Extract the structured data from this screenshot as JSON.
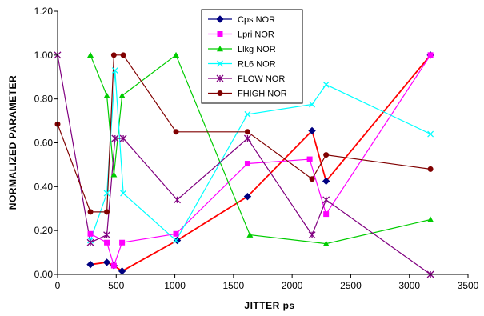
{
  "chart_data": {
    "type": "scatter",
    "xlabel": "JITTER ps",
    "ylabel": "NORMALIZED PARAMETER",
    "xlim": [
      0,
      3500
    ],
    "ylim": [
      0,
      1.2
    ],
    "x_ticks": [
      "0",
      "500",
      "1000",
      "1500",
      "2000",
      "2500",
      "3000",
      "3500"
    ],
    "y_ticks": [
      "0.00",
      "0.20",
      "0.40",
      "0.60",
      "0.80",
      "1.00",
      "1.20"
    ],
    "grid": false,
    "legend_position": "top-center",
    "series": [
      {
        "name": "Cps NOR",
        "color": "#000080",
        "line_color": "#ff0000",
        "marker": "diamond",
        "points": [
          [
            280,
            0.045
          ],
          [
            420,
            0.055
          ],
          [
            480,
            0.04
          ],
          [
            550,
            0.015
          ],
          [
            1020,
            0.155
          ],
          [
            1620,
            0.355
          ],
          [
            2170,
            0.655
          ],
          [
            2290,
            0.425
          ],
          [
            3180,
            1.0
          ]
        ]
      },
      {
        "name": "Lpri NOR",
        "color": "#ff00ff",
        "marker": "square",
        "points": [
          [
            280,
            0.185
          ],
          [
            420,
            0.145
          ],
          [
            480,
            0.04
          ],
          [
            550,
            0.145
          ],
          [
            1010,
            0.185
          ],
          [
            1620,
            0.505
          ],
          [
            2150,
            0.525
          ],
          [
            2290,
            0.275
          ],
          [
            3180,
            1.0
          ]
        ]
      },
      {
        "name": "Llkg NOR",
        "color": "#00cc00",
        "marker": "triangle",
        "points": [
          [
            280,
            1.0
          ],
          [
            420,
            0.815
          ],
          [
            480,
            0.455
          ],
          [
            550,
            0.815
          ],
          [
            1010,
            1.0
          ],
          [
            1640,
            0.18
          ],
          [
            2290,
            0.14
          ],
          [
            3180,
            0.25
          ]
        ]
      },
      {
        "name": "RL6 NOR",
        "color": "#00ffff",
        "marker": "x",
        "points": [
          [
            280,
            0.155
          ],
          [
            420,
            0.37
          ],
          [
            490,
            0.93
          ],
          [
            560,
            0.37
          ],
          [
            1010,
            0.155
          ],
          [
            1620,
            0.73
          ],
          [
            2170,
            0.775
          ],
          [
            2290,
            0.865
          ],
          [
            3180,
            0.64
          ]
        ]
      },
      {
        "name": "FLOW NOR",
        "color": "#800080",
        "marker": "star",
        "points": [
          [
            0,
            1.0
          ],
          [
            280,
            0.145
          ],
          [
            420,
            0.18
          ],
          [
            490,
            0.62
          ],
          [
            560,
            0.62
          ],
          [
            1020,
            0.34
          ],
          [
            1620,
            0.62
          ],
          [
            2170,
            0.18
          ],
          [
            2290,
            0.34
          ],
          [
            3180,
            0.0
          ]
        ]
      },
      {
        "name": "FHIGH NOR",
        "color": "#800000",
        "marker": "circle",
        "points": [
          [
            0,
            0.685
          ],
          [
            280,
            0.285
          ],
          [
            420,
            0.285
          ],
          [
            480,
            1.0
          ],
          [
            560,
            1.0
          ],
          [
            1010,
            0.65
          ],
          [
            1620,
            0.65
          ],
          [
            2170,
            0.435
          ],
          [
            2290,
            0.545
          ],
          [
            3180,
            0.48
          ]
        ]
      }
    ]
  }
}
